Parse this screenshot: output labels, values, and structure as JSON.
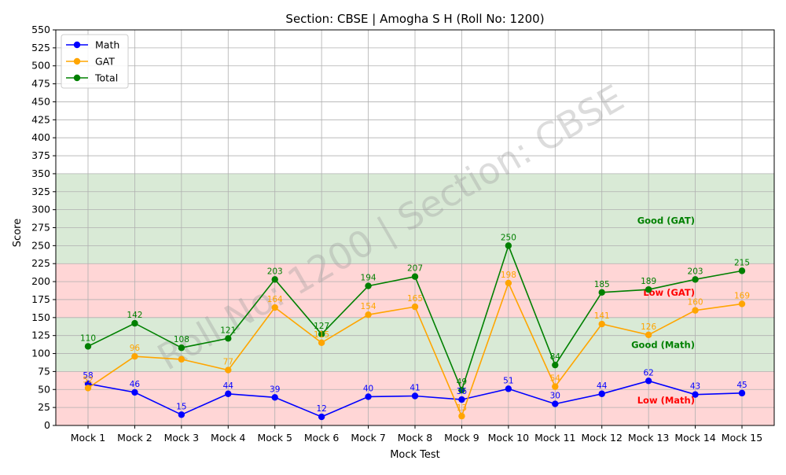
{
  "chart_data": {
    "type": "line",
    "title": "Section: CBSE | Amogha S H (Roll No: 1200)",
    "xlabel": "Mock Test",
    "ylabel": "Score",
    "ylim": [
      0,
      550
    ],
    "yticks": [
      0,
      25,
      50,
      75,
      100,
      125,
      150,
      175,
      200,
      225,
      250,
      275,
      300,
      325,
      350,
      375,
      400,
      425,
      450,
      475,
      500,
      525,
      550
    ],
    "grid": true,
    "legend_position": "top-left",
    "categories": [
      "Mock 1",
      "Mock 2",
      "Mock 3",
      "Mock 4",
      "Mock 5",
      "Mock 6",
      "Mock 7",
      "Mock 8",
      "Mock 9",
      "Mock 10",
      "Mock 11",
      "Mock 12",
      "Mock 13",
      "Mock 14",
      "Mock 15"
    ],
    "series": [
      {
        "name": "Math",
        "color": "#0000ff",
        "values": [
          58,
          46,
          15,
          44,
          39,
          12,
          40,
          41,
          36,
          51,
          30,
          44,
          62,
          43,
          45
        ],
        "labels": [
          "58",
          "46",
          "15",
          "44",
          "39",
          "12",
          "40",
          "41",
          "36",
          "51",
          "30",
          "44",
          "62",
          "43",
          "45"
        ]
      },
      {
        "name": "GAT",
        "color": "#ffa500",
        "values": [
          52,
          96,
          92,
          77,
          164,
          115,
          154,
          165,
          13,
          198,
          54,
          141,
          126,
          160,
          169
        ],
        "labels": [
          "52",
          "96",
          "",
          "77",
          "164",
          "115",
          "154",
          "165",
          "13",
          "198",
          "54",
          "141",
          "126",
          "160",
          "169"
        ]
      },
      {
        "name": "Total",
        "color": "#008000",
        "values": [
          110,
          142,
          108,
          121,
          203,
          127,
          194,
          207,
          49,
          250,
          84,
          185,
          189,
          203,
          215
        ],
        "labels": [
          "110",
          "142",
          "108",
          "121",
          "203",
          "127",
          "194",
          "207",
          "49",
          "250",
          "84",
          "185",
          "189",
          "203",
          "215"
        ]
      }
    ],
    "bands": [
      {
        "from": 0,
        "to": 75,
        "color": "#ffd6d6"
      },
      {
        "from": 75,
        "to": 150,
        "color": "#d9ead6"
      },
      {
        "from": 150,
        "to": 225,
        "color": "#ffd6d6"
      },
      {
        "from": 225,
        "to": 350,
        "color": "#d9ead6"
      }
    ],
    "band_labels": [
      {
        "text": "Good (GAT)",
        "y": 285,
        "color": "#008000"
      },
      {
        "text": "Low (GAT)",
        "y": 185,
        "color": "#ff0000"
      },
      {
        "text": "Good (Math)",
        "y": 112,
        "color": "#008000"
      },
      {
        "text": "Low (Math)",
        "y": 35,
        "color": "#ff0000"
      }
    ],
    "watermark": "Roll No: 1200 | Section: CBSE"
  }
}
